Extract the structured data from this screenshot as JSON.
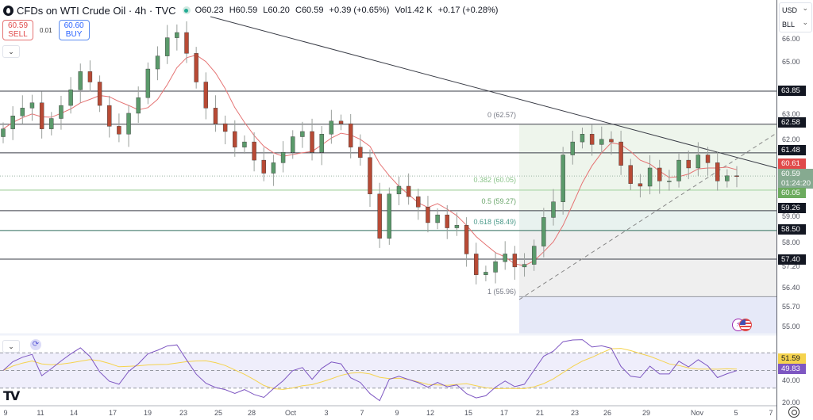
{
  "header": {
    "title": "CFDs on WTI Crude Oil · 4h · TVC",
    "open": "O60.23",
    "high": "H60.59",
    "low": "L60.20",
    "close": "C60.59",
    "change": "+0.39 (+0.65%)",
    "volume": "Vol1.42 K",
    "volume_change": "+0.17 (+0.28%)"
  },
  "trade": {
    "sell_price": "60.59",
    "sell_label": "SELL",
    "spread": "0.01",
    "buy_price": "60.60",
    "buy_label": "BUY"
  },
  "axis": {
    "currency": "USD",
    "unit": "BLL",
    "price_ticks": [
      "66.00",
      "65.00",
      "63.00",
      "62.00",
      "59.00",
      "58.00",
      "57.20",
      "56.40",
      "55.70",
      "55.00"
    ],
    "rsi_ticks": [
      "40.00",
      "20.00"
    ],
    "x_ticks": [
      "9",
      "11",
      "14",
      "17",
      "19",
      "23",
      "25",
      "28",
      "Oct",
      "3",
      "7",
      "9",
      "12",
      "15",
      "17",
      "21",
      "23",
      "26",
      "29",
      "Nov",
      "5",
      "7"
    ]
  },
  "price_tags": {
    "level_1": "63.85",
    "level_2": "62.58",
    "level_3": "61.48",
    "ma_value": "60.61",
    "last_price": "60.59",
    "countdown": "01:24:20",
    "fib_382": "60.05",
    "level_4": "59.26",
    "level_5": "58.50",
    "level_6": "57.40",
    "rsi_ma": "51.59",
    "rsi": "49.83"
  },
  "fib_labels": {
    "f0": "0 (62.57)",
    "f382": "0.382 (60.05)",
    "f5": "0.5 (59.27)",
    "f618": "0.618 (58.49)",
    "f1": "1 (55.96)"
  },
  "colors": {
    "up": "#5b9a6b",
    "down": "#b84a35",
    "ma": "#e57373",
    "rsi": "#7e57c2",
    "rsi_ma": "#f5d34e"
  },
  "chart_data": {
    "type": "candlestick",
    "title": "CFDs on WTI Crude Oil · 4h · TVC",
    "xlabel": "",
    "ylabel": "USD / BLL",
    "ylim": [
      54.7,
      66.5
    ],
    "horizontal_levels": [
      63.85,
      62.58,
      61.48,
      59.26,
      58.5,
      57.4
    ],
    "fibonacci": {
      "0": 62.57,
      "0.382": 60.05,
      "0.5": 59.27,
      "0.618": 58.49,
      "1": 55.96
    },
    "last_price": 60.59,
    "ma_last": 60.61,
    "x_ticks": [
      "9",
      "11",
      "14",
      "17",
      "19",
      "23",
      "25",
      "28",
      "Oct",
      "3",
      "7",
      "9",
      "12",
      "15",
      "17",
      "21",
      "23",
      "26",
      "29",
      "Nov",
      "5",
      "7"
    ],
    "approx_closes": [
      62.4,
      62.9,
      63.2,
      63.4,
      62.4,
      62.8,
      63.3,
      63.9,
      64.6,
      64.2,
      63.3,
      62.5,
      62.2,
      63.0,
      63.6,
      64.7,
      65.2,
      65.9,
      66.1,
      65.3,
      64.2,
      63.2,
      62.6,
      62.3,
      61.7,
      61.9,
      61.2,
      60.7,
      61.1,
      61.5,
      62.1,
      62.3,
      61.5,
      62.2,
      62.7,
      62.6,
      61.7,
      61.3,
      59.9,
      58.2,
      59.9,
      60.2,
      59.8,
      59.4,
      58.8,
      59.1,
      58.6,
      58.7,
      57.6,
      56.8,
      56.9,
      57.3,
      57.6,
      57.1,
      57.2,
      57.9,
      59.0,
      59.6,
      61.4,
      61.9,
      62.2,
      61.8,
      62.0,
      61.9,
      61.0,
      60.3,
      60.2,
      60.9,
      60.4,
      60.4,
      61.2,
      60.9,
      61.4,
      61.1,
      60.4,
      60.6,
      60.59
    ],
    "indicators": {
      "rsi": {
        "last": 49.83,
        "levels": [
          70,
          50,
          30
        ],
        "ylim": [
          10,
          90
        ]
      },
      "rsi_ma": {
        "last": 51.59
      }
    }
  }
}
